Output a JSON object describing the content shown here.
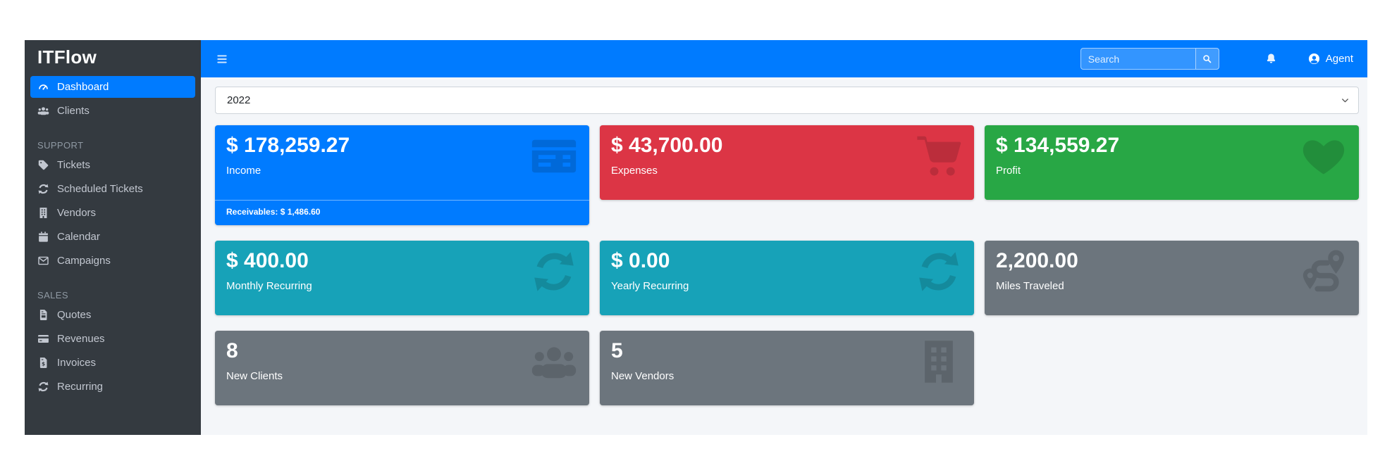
{
  "colors": {
    "primary": "#007bff",
    "danger": "#dc3545",
    "success": "#28a745",
    "info": "#17a2b8",
    "secondary": "#6c757d",
    "sidebar_bg": "#343a40",
    "content_bg": "#f4f6f9"
  },
  "navbar": {
    "menu_icon": "bars-icon",
    "search": {
      "placeholder": "Search",
      "button_icon": "search-icon"
    },
    "notifications_icon": "bell-icon",
    "user": {
      "label": "Agent",
      "icon": "user-circle-icon"
    }
  },
  "sidebar": {
    "brand": "ITFlow",
    "sections": [
      {
        "header": "",
        "items": [
          {
            "label": "Dashboard",
            "icon": "tachometer-icon",
            "active": true
          },
          {
            "label": "Clients",
            "icon": "users-icon",
            "active": false
          }
        ]
      },
      {
        "header": "SUPPORT",
        "items": [
          {
            "label": "Tickets",
            "icon": "tags-icon",
            "active": false
          },
          {
            "label": "Scheduled Tickets",
            "icon": "sync-icon",
            "active": false
          },
          {
            "label": "Vendors",
            "icon": "building-icon",
            "active": false
          },
          {
            "label": "Calendar",
            "icon": "calendar-icon",
            "active": false
          },
          {
            "label": "Campaigns",
            "icon": "envelope-icon",
            "active": false
          }
        ]
      },
      {
        "header": "SALES",
        "items": [
          {
            "label": "Quotes",
            "icon": "file-invoice-icon",
            "active": false
          },
          {
            "label": "Revenues",
            "icon": "credit-card-icon",
            "active": false
          },
          {
            "label": "Invoices",
            "icon": "file-invoice-dollar-icon",
            "active": false
          },
          {
            "label": "Recurring",
            "icon": "sync-icon",
            "active": false
          }
        ]
      }
    ]
  },
  "main": {
    "year_select": {
      "value": "2022",
      "chevron_icon": "chevron-down-icon"
    },
    "cards": [
      {
        "value": "$ 178,259.27",
        "label": "Income",
        "icon": "list-alt-icon",
        "color": "#007bff",
        "footer": "Receivables: $ 1,486.60"
      },
      {
        "value": "$ 43,700.00",
        "label": "Expenses",
        "icon": "shopping-cart-icon",
        "color": "#dc3545"
      },
      {
        "value": "$ 134,559.27",
        "label": "Profit",
        "icon": "heart-icon",
        "color": "#28a745"
      },
      {
        "value": "$ 400.00",
        "label": "Monthly Recurring",
        "icon": "sync-icon",
        "color": "#17a2b8"
      },
      {
        "value": "$ 0.00",
        "label": "Yearly Recurring",
        "icon": "sync-icon",
        "color": "#17a2b8"
      },
      {
        "value": "2,200.00",
        "label": "Miles Traveled",
        "icon": "route-icon",
        "color": "#6c757d"
      },
      {
        "value": "8",
        "label": "New Clients",
        "icon": "users-icon",
        "color": "#6c757d"
      },
      {
        "value": "5",
        "label": "New Vendors",
        "icon": "building-icon",
        "color": "#6c757d"
      }
    ]
  }
}
